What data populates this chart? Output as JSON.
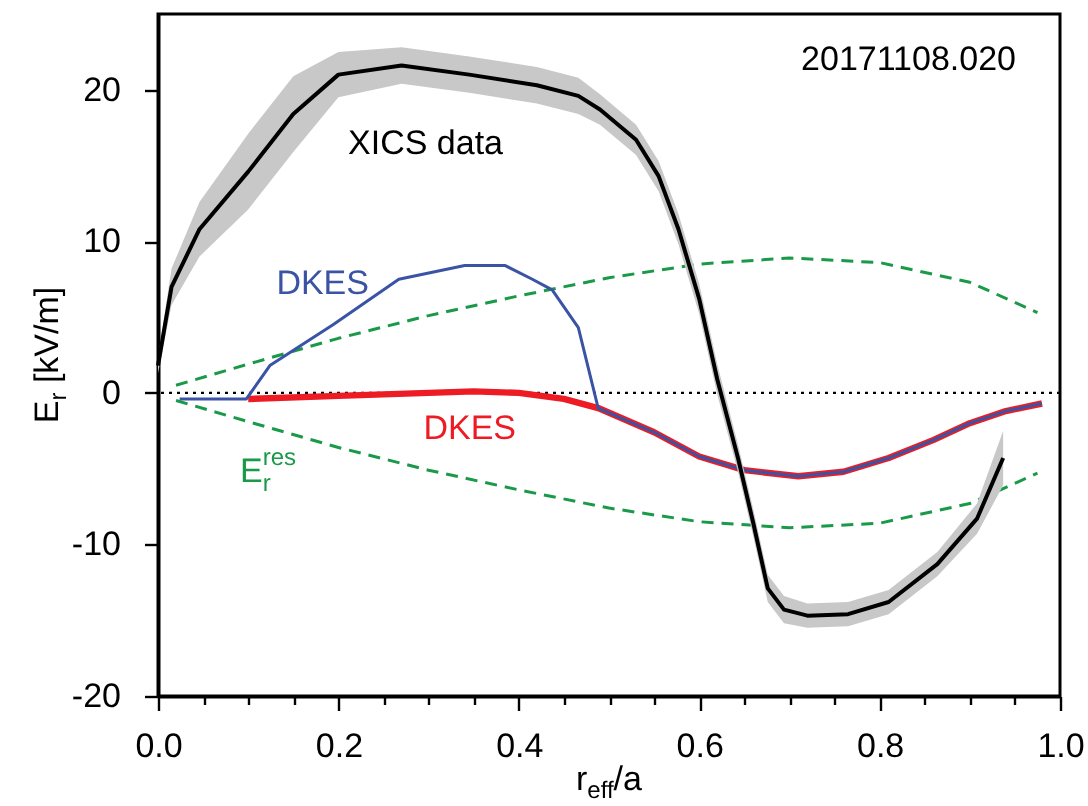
{
  "chart_data": {
    "type": "line",
    "xlabel": "r$_{eff}$/a",
    "ylabel": "E$_{r}$ [kV/m]",
    "annotations": [
      "20171108.020"
    ],
    "xlim": [
      0,
      1
    ],
    "ylim": [
      -20,
      25
    ],
    "xticks": [
      {
        "value": 0,
        "label": "0.0"
      },
      {
        "value": 0.05,
        "label": null
      },
      {
        "value": 0.1,
        "label": null
      },
      {
        "value": 0.15,
        "label": null
      },
      {
        "value": 0.2,
        "label": "0.2"
      },
      {
        "value": 0.25,
        "label": null
      },
      {
        "value": 0.3,
        "label": null
      },
      {
        "value": 0.35,
        "label": null
      },
      {
        "value": 0.4,
        "label": "0.4"
      },
      {
        "value": 0.45,
        "label": null
      },
      {
        "value": 0.5,
        "label": null
      },
      {
        "value": 0.55,
        "label": null
      },
      {
        "value": 0.6,
        "label": "0.6"
      },
      {
        "value": 0.65,
        "label": null
      },
      {
        "value": 0.7,
        "label": null
      },
      {
        "value": 0.75,
        "label": null
      },
      {
        "value": 0.8,
        "label": "0.8"
      },
      {
        "value": 0.85,
        "label": null
      },
      {
        "value": 0.9,
        "label": null
      },
      {
        "value": 0.95,
        "label": null
      },
      {
        "value": 1,
        "label": "1.0"
      }
    ],
    "yticks": [
      -20,
      -10,
      0,
      10,
      20
    ],
    "grid": false,
    "marker": "none",
    "ref_lines": [
      {
        "axis": "y",
        "value": 0,
        "color": "#000000",
        "line_style": "dotted"
      }
    ],
    "series": [
      {
        "color": "#1a9a48",
        "line_style": "dashed",
        "x": [
          0.02,
          0.1,
          0.2,
          0.3,
          0.4,
          0.5,
          0.6,
          0.7,
          0.8,
          0.9,
          0.975
        ],
        "values": [
          0.5,
          1.9,
          3.6,
          5.1,
          6.4,
          7.6,
          8.5,
          8.9,
          8.6,
          7.3,
          5.3
        ]
      },
      {
        "name": "E$_{r}$$^{res}$",
        "color": "#1a9a48",
        "line_style": "dashed",
        "x": [
          0.02,
          0.1,
          0.2,
          0.3,
          0.4,
          0.5,
          0.6,
          0.7,
          0.8,
          0.9,
          0.975
        ],
        "values": [
          -0.5,
          -1.9,
          -3.6,
          -5.1,
          -6.4,
          -7.6,
          -8.5,
          -8.9,
          -8.6,
          -7.3,
          -5.3
        ]
      },
      {
        "name": "DKES",
        "color": "#ed1c24",
        "line_style": "solid",
        "x": [
          0.1,
          0.2,
          0.3,
          0.35,
          0.4,
          0.45,
          0.488,
          0.55,
          0.6,
          0.65,
          0.71,
          0.76,
          0.81,
          0.86,
          0.9,
          0.94,
          0.98
        ],
        "values": [
          -0.4,
          -0.2,
          0,
          0.1,
          0,
          -0.4,
          -1.0,
          -2.6,
          -4.2,
          -5.1,
          -5.5,
          -5.2,
          -4.3,
          -3.1,
          -2.0,
          -1.2,
          -0.7
        ]
      },
      {
        "name": "DKES",
        "color": "#3a53a4",
        "line_style": "solid",
        "x": [
          0.024,
          0.098,
          0.124,
          0.194,
          0.267,
          0.34,
          0.385,
          0.415,
          0.437,
          0.466,
          0.488,
          0.55,
          0.6,
          0.65,
          0.71,
          0.76,
          0.81,
          0.86,
          0.9,
          0.94,
          0.98
        ],
        "values": [
          -0.4,
          -0.4,
          1.8,
          4.5,
          7.5,
          8.4,
          8.4,
          7.5,
          6.8,
          4.3,
          -1.0,
          -2.6,
          -4.2,
          -5.1,
          -5.5,
          -5.2,
          -4.3,
          -3.1,
          -2.0,
          -1.2,
          -0.7
        ]
      },
      {
        "name": "XICS data",
        "color": "#000000",
        "line_style": "solid",
        "x": [
          0,
          0.015,
          0.046,
          0.1,
          0.15,
          0.2,
          0.27,
          0.345,
          0.42,
          0.466,
          0.49,
          0.53,
          0.555,
          0.577,
          0.6,
          0.62,
          0.643,
          0.66,
          0.676,
          0.694,
          0.72,
          0.765,
          0.81,
          0.864,
          0.908,
          0.937
        ],
        "values": [
          1.8,
          7,
          10.8,
          14.6,
          18.4,
          21,
          21.6,
          21,
          20.3,
          19.6,
          18.7,
          16.7,
          14.3,
          10.8,
          6.2,
          0.9,
          -4.3,
          -8.6,
          -12.9,
          -14.3,
          -14.7,
          -14.6,
          -13.8,
          -11.3,
          -8.3,
          -4.3
        ],
        "lower": [
          1.3,
          5.8,
          9.0,
          12.1,
          15.9,
          19.5,
          20.4,
          19.8,
          19.1,
          18.4,
          17.7,
          15.7,
          13.3,
          9.8,
          5.2,
          -0.1,
          -5.2,
          -9.5,
          -13.8,
          -15.2,
          -15.5,
          -15.4,
          -14.6,
          -12.1,
          -9.3,
          -6.1
        ],
        "upper": [
          2.3,
          8.2,
          12.6,
          17.1,
          20.9,
          22.5,
          22.8,
          22.2,
          21.5,
          20.8,
          19.7,
          17.7,
          15.3,
          11.8,
          7.2,
          1.9,
          -3.4,
          -7.7,
          -12.0,
          -13.4,
          -13.9,
          -13.8,
          -13.0,
          -10.5,
          -7.3,
          -2.5
        ]
      }
    ]
  }
}
